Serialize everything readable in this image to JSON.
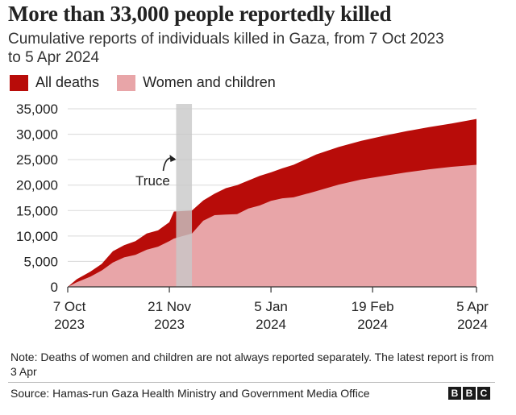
{
  "header": {
    "title": "More than 33,000 people reportedly killed",
    "subtitle": "Cumulative reports of individuals killed in Gaza, from 7 Oct 2023 to 5 Apr 2024"
  },
  "legend": {
    "items": [
      {
        "label": "All deaths",
        "color": "#b80c09"
      },
      {
        "label": "Women and children",
        "color": "#e8a5a8"
      }
    ]
  },
  "chart_data": {
    "type": "area",
    "title": "More than 33,000 people reportedly killed",
    "subtitle": "Cumulative reports of individuals killed in Gaza, from 7 Oct 2023 to 5 Apr 2024",
    "xlabel": "",
    "ylabel": "",
    "xlim": [
      0,
      181
    ],
    "ylim": [
      0,
      35000
    ],
    "y_ticks": [
      "0",
      "5,000",
      "10,000",
      "15,000",
      "20,000",
      "25,000",
      "30,000",
      "35,000"
    ],
    "y_tick_values": [
      0,
      5000,
      10000,
      15000,
      20000,
      25000,
      30000,
      35000
    ],
    "x_ticks": [
      {
        "day": 0,
        "line1": "7 Oct",
        "line2": "2023"
      },
      {
        "day": 45,
        "line1": "21 Nov",
        "line2": "2023"
      },
      {
        "day": 90,
        "line1": "5 Jan",
        "line2": "2024"
      },
      {
        "day": 135,
        "line1": "19 Feb",
        "line2": "2024"
      },
      {
        "day": 181,
        "line1": "5 Apr",
        "line2": "2024"
      }
    ],
    "grid": true,
    "annotation": {
      "label": "Truce",
      "start_day": 48,
      "end_day": 55
    },
    "series": [
      {
        "name": "All deaths",
        "color": "#b80c09",
        "x": [
          0,
          4,
          10,
          15,
          20,
          25,
          30,
          35,
          40,
          45,
          47,
          55,
          60,
          65,
          70,
          75,
          80,
          85,
          90,
          95,
          100,
          110,
          120,
          130,
          140,
          150,
          160,
          170,
          181
        ],
        "y": [
          0,
          1500,
          3000,
          4500,
          7000,
          8200,
          9000,
          10500,
          11100,
          12700,
          14800,
          15000,
          17000,
          18300,
          19400,
          20000,
          20900,
          21800,
          22500,
          23300,
          24000,
          26000,
          27500,
          28700,
          29700,
          30600,
          31400,
          32100,
          33000
        ]
      },
      {
        "name": "Women and children",
        "color": "#e8a5a8",
        "x": [
          0,
          4,
          10,
          15,
          20,
          25,
          30,
          35,
          40,
          45,
          47,
          55,
          60,
          65,
          70,
          75,
          80,
          85,
          90,
          95,
          100,
          110,
          120,
          130,
          140,
          150,
          160,
          170,
          181
        ],
        "y": [
          0,
          900,
          2000,
          3200,
          4800,
          5800,
          6300,
          7300,
          7900,
          9000,
          9500,
          10500,
          13000,
          14100,
          14200,
          14300,
          15400,
          16000,
          16900,
          17400,
          17600,
          18800,
          20100,
          21100,
          21800,
          22500,
          23100,
          23600,
          24000
        ]
      }
    ]
  },
  "note": "Note: Deaths of women and children are not always reported separately. The latest report is from 3 Apr",
  "source": "Source: Hamas-run Gaza Health Ministry and Government Media Office",
  "logo": {
    "letters": [
      "B",
      "B",
      "C"
    ]
  }
}
